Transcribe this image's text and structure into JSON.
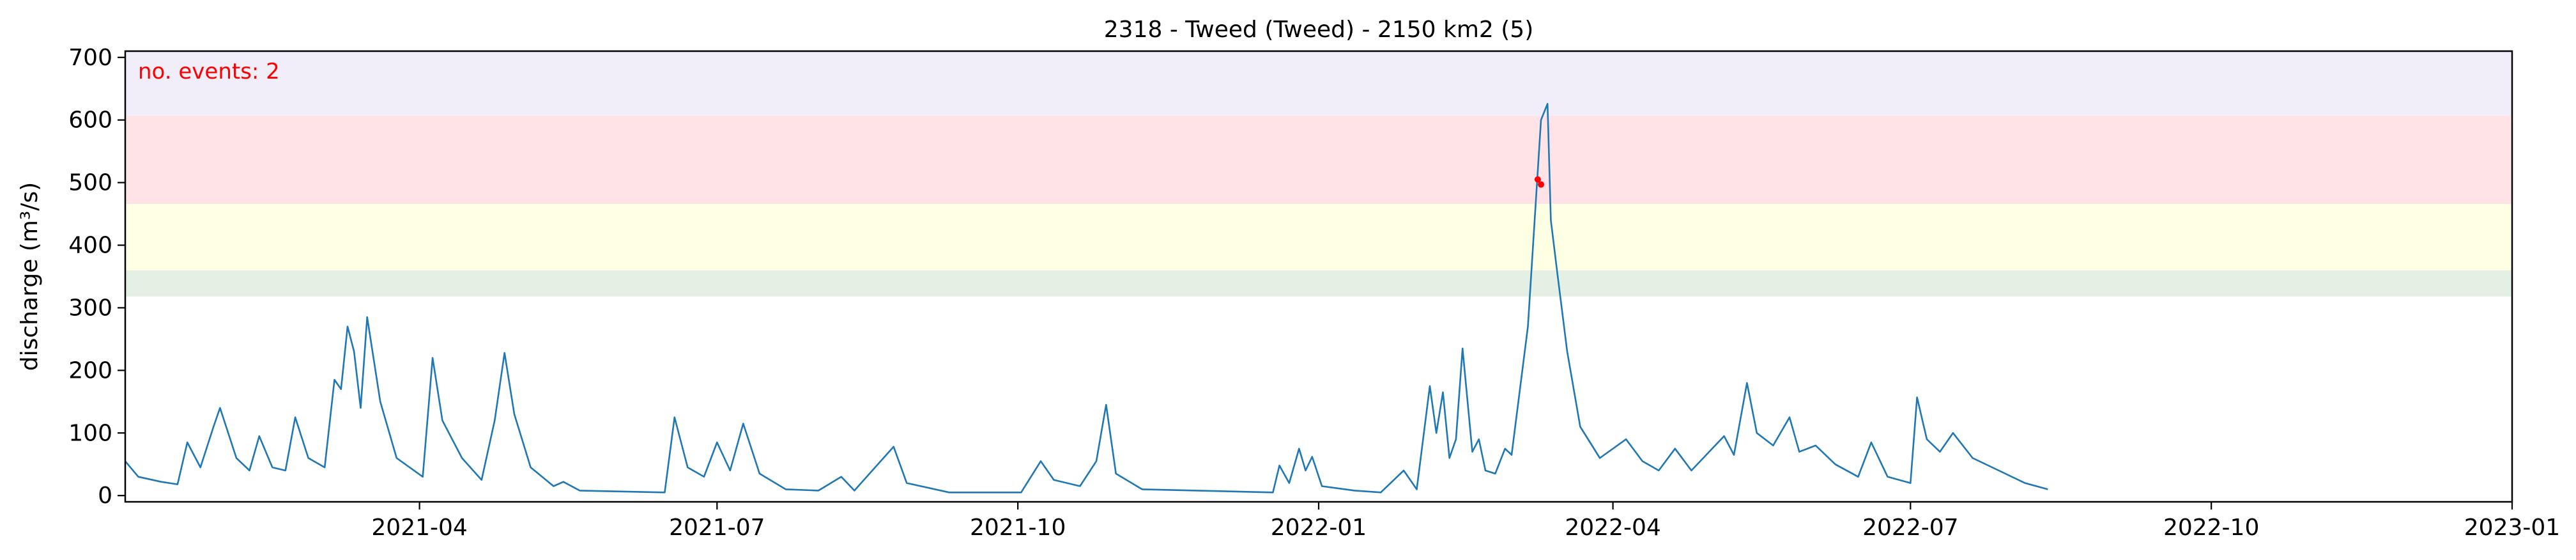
{
  "chart_data": {
    "type": "line",
    "title": "2318 - Tweed (Tweed) - 2150 km2 (5)",
    "xlabel": "",
    "ylabel": "discharge (m³/s)",
    "xlim": [
      "2021-01-01",
      "2023-01-01"
    ],
    "ylim": [
      -10,
      710
    ],
    "grid": false,
    "yticks": [
      0,
      100,
      200,
      300,
      400,
      500,
      600,
      700
    ],
    "xticks": [
      {
        "date": "2021-04-01",
        "label": "2021-04"
      },
      {
        "date": "2021-07-01",
        "label": "2021-07"
      },
      {
        "date": "2021-10-01",
        "label": "2021-10"
      },
      {
        "date": "2022-01-01",
        "label": "2022-01"
      },
      {
        "date": "2022-04-01",
        "label": "2022-04"
      },
      {
        "date": "2022-07-01",
        "label": "2022-07"
      },
      {
        "date": "2022-10-01",
        "label": "2022-10"
      },
      {
        "date": "2023-01-01",
        "label": "2023-01"
      }
    ],
    "annotation": "no. events: 2",
    "threshold_bands": [
      {
        "from": 318,
        "to": 360,
        "color": "#e3f0e3"
      },
      {
        "from": 360,
        "to": 466,
        "color": "#ffffe3"
      },
      {
        "from": 466,
        "to": 607,
        "color": "#ffe3e6"
      },
      {
        "from": 607,
        "to": 710,
        "color": "#f1eefa"
      }
    ],
    "colors": {
      "series": "#1f77b4",
      "events": "#ff0000",
      "annotation": "#ff0000"
    },
    "series": [
      {
        "points": [
          [
            "2021-01-01",
            55
          ],
          [
            "2021-01-05",
            30
          ],
          [
            "2021-01-12",
            22
          ],
          [
            "2021-01-17",
            18
          ],
          [
            "2021-01-20",
            85
          ],
          [
            "2021-01-24",
            45
          ],
          [
            "2021-01-28",
            110
          ],
          [
            "2021-01-30",
            140
          ],
          [
            "2021-02-04",
            60
          ],
          [
            "2021-02-08",
            40
          ],
          [
            "2021-02-11",
            95
          ],
          [
            "2021-02-15",
            45
          ],
          [
            "2021-02-19",
            40
          ],
          [
            "2021-02-22",
            125
          ],
          [
            "2021-02-26",
            60
          ],
          [
            "2021-03-03",
            45
          ],
          [
            "2021-03-06",
            185
          ],
          [
            "2021-03-08",
            170
          ],
          [
            "2021-03-10",
            270
          ],
          [
            "2021-03-12",
            230
          ],
          [
            "2021-03-14",
            140
          ],
          [
            "2021-03-16",
            285
          ],
          [
            "2021-03-20",
            150
          ],
          [
            "2021-03-25",
            60
          ],
          [
            "2021-04-02",
            30
          ],
          [
            "2021-04-05",
            220
          ],
          [
            "2021-04-08",
            120
          ],
          [
            "2021-04-14",
            60
          ],
          [
            "2021-04-20",
            25
          ],
          [
            "2021-04-24",
            120
          ],
          [
            "2021-04-27",
            228
          ],
          [
            "2021-04-30",
            130
          ],
          [
            "2021-05-05",
            45
          ],
          [
            "2021-05-12",
            15
          ],
          [
            "2021-05-15",
            22
          ],
          [
            "2021-05-20",
            8
          ],
          [
            "2021-06-15",
            5
          ],
          [
            "2021-06-18",
            125
          ],
          [
            "2021-06-22",
            45
          ],
          [
            "2021-06-27",
            30
          ],
          [
            "2021-07-01",
            85
          ],
          [
            "2021-07-05",
            40
          ],
          [
            "2021-07-09",
            115
          ],
          [
            "2021-07-14",
            35
          ],
          [
            "2021-07-22",
            10
          ],
          [
            "2021-08-01",
            8
          ],
          [
            "2021-08-08",
            30
          ],
          [
            "2021-08-12",
            8
          ],
          [
            "2021-08-24",
            78
          ],
          [
            "2021-08-28",
            20
          ],
          [
            "2021-09-10",
            5
          ],
          [
            "2021-10-02",
            5
          ],
          [
            "2021-10-08",
            55
          ],
          [
            "2021-10-12",
            25
          ],
          [
            "2021-10-20",
            15
          ],
          [
            "2021-10-25",
            55
          ],
          [
            "2021-10-28",
            145
          ],
          [
            "2021-10-31",
            35
          ],
          [
            "2021-11-08",
            10
          ],
          [
            "2021-12-18",
            5
          ],
          [
            "2021-12-20",
            48
          ],
          [
            "2021-12-23",
            20
          ],
          [
            "2021-12-26",
            75
          ],
          [
            "2021-12-28",
            40
          ],
          [
            "2021-12-30",
            62
          ],
          [
            "2022-01-02",
            15
          ],
          [
            "2022-01-12",
            8
          ],
          [
            "2022-01-20",
            5
          ],
          [
            "2022-01-27",
            40
          ],
          [
            "2022-01-31",
            10
          ],
          [
            "2022-02-04",
            175
          ],
          [
            "2022-02-06",
            100
          ],
          [
            "2022-02-08",
            165
          ],
          [
            "2022-02-10",
            60
          ],
          [
            "2022-02-12",
            90
          ],
          [
            "2022-02-14",
            235
          ],
          [
            "2022-02-17",
            70
          ],
          [
            "2022-02-19",
            90
          ],
          [
            "2022-02-21",
            40
          ],
          [
            "2022-02-24",
            35
          ],
          [
            "2022-02-27",
            75
          ],
          [
            "2022-03-01",
            65
          ],
          [
            "2022-03-06",
            270
          ],
          [
            "2022-03-10",
            600
          ],
          [
            "2022-03-12",
            626
          ],
          [
            "2022-03-13",
            440
          ],
          [
            "2022-03-15",
            355
          ],
          [
            "2022-03-18",
            230
          ],
          [
            "2022-03-22",
            110
          ],
          [
            "2022-03-28",
            60
          ],
          [
            "2022-04-05",
            90
          ],
          [
            "2022-04-10",
            55
          ],
          [
            "2022-04-15",
            40
          ],
          [
            "2022-04-20",
            75
          ],
          [
            "2022-04-25",
            40
          ],
          [
            "2022-05-05",
            95
          ],
          [
            "2022-05-08",
            65
          ],
          [
            "2022-05-12",
            180
          ],
          [
            "2022-05-15",
            100
          ],
          [
            "2022-05-20",
            80
          ],
          [
            "2022-05-25",
            125
          ],
          [
            "2022-05-28",
            70
          ],
          [
            "2022-06-02",
            80
          ],
          [
            "2022-06-08",
            50
          ],
          [
            "2022-06-15",
            30
          ],
          [
            "2022-06-19",
            85
          ],
          [
            "2022-06-24",
            30
          ],
          [
            "2022-07-01",
            20
          ],
          [
            "2022-07-03",
            157
          ],
          [
            "2022-07-06",
            90
          ],
          [
            "2022-07-10",
            70
          ],
          [
            "2022-07-14",
            100
          ],
          [
            "2022-07-20",
            60
          ],
          [
            "2022-07-28",
            40
          ],
          [
            "2022-08-05",
            20
          ],
          [
            "2022-08-12",
            10
          ]
        ]
      }
    ],
    "events": [
      {
        "date": "2022-03-09",
        "value": 505
      },
      {
        "date": "2022-03-10",
        "value": 497
      }
    ]
  }
}
